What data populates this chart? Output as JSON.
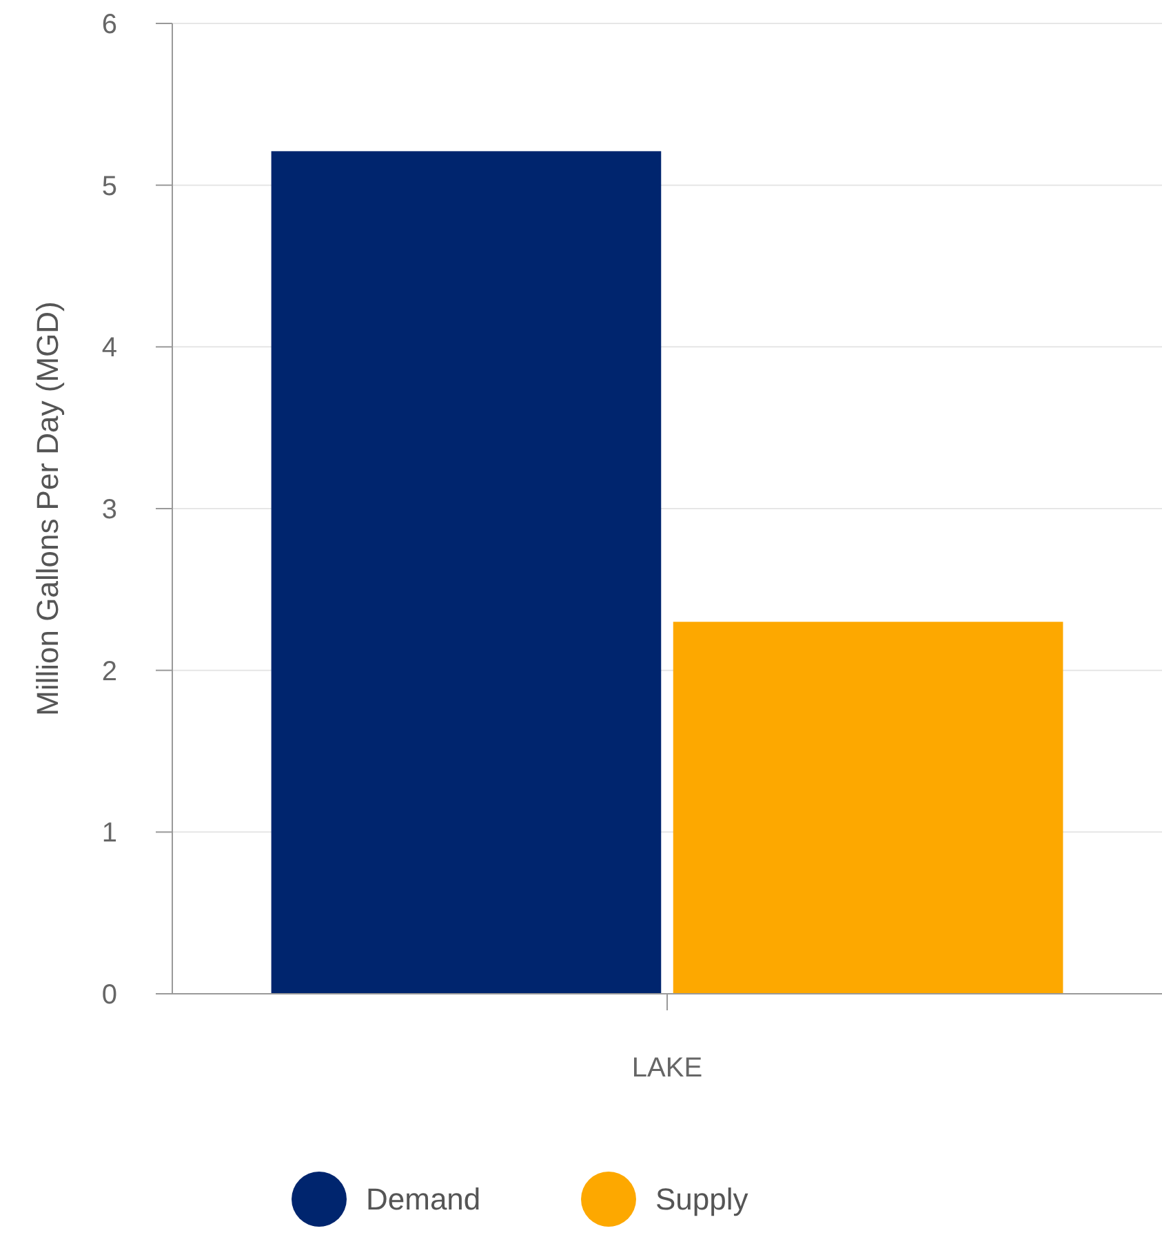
{
  "chart_data": {
    "type": "bar",
    "ylabel": "Million Gallons Per Day (MGD)",
    "categories": [
      "LAKE"
    ],
    "series": [
      {
        "name": "Demand",
        "color": "#00256e",
        "values": [
          5.21
        ]
      },
      {
        "name": "Supply",
        "color": "#fda800",
        "values": [
          2.3
        ]
      }
    ],
    "ylim": [
      0,
      6
    ],
    "yticks": [
      0,
      1,
      2,
      3,
      4,
      5,
      6
    ],
    "grid": "y",
    "legend": "bottom"
  }
}
